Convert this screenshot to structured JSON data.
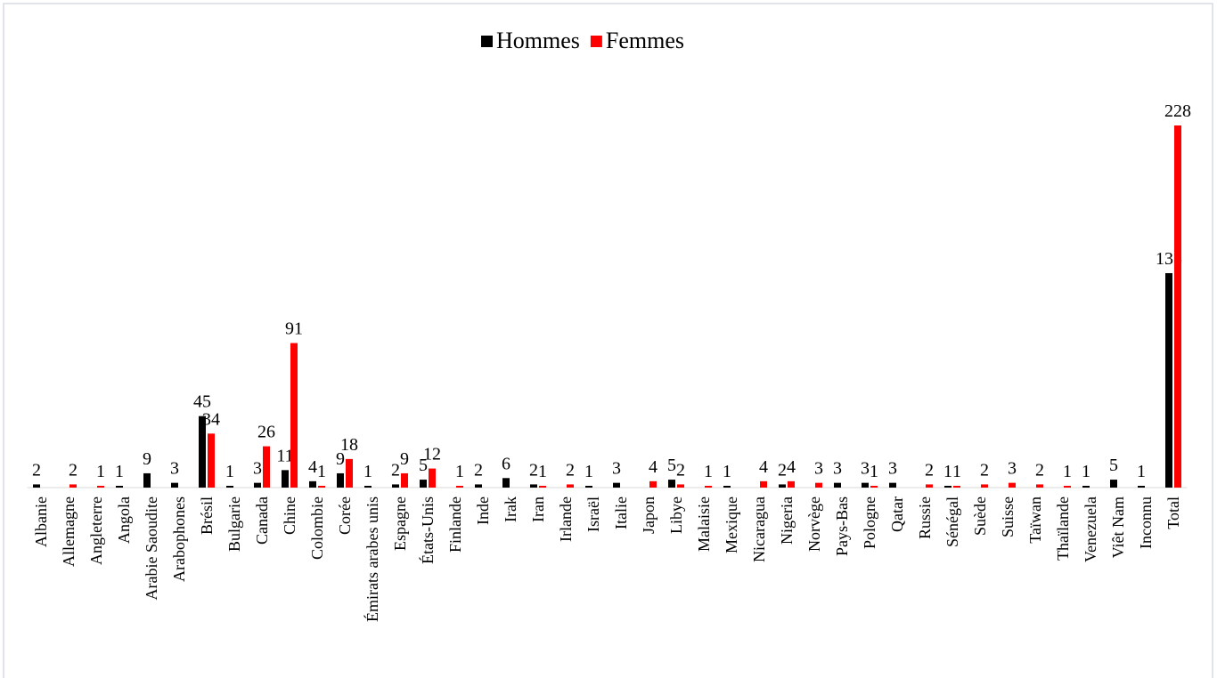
{
  "chart_data": {
    "type": "bar",
    "categories": [
      "Albanie",
      "Allemagne",
      "Angleterre",
      "Angola",
      "Arabie Saoudite",
      "Arabophones",
      "Brésil",
      "Bulgarie",
      "Canada",
      "Chine",
      "Colombie",
      "Corée",
      "Émirats arabes unis",
      "Espagne",
      "États-Unis",
      "Finlande",
      "Inde",
      "Irak",
      "Iran",
      "Irlande",
      "Israël",
      "Italie",
      "Japon",
      "Libye",
      "Malaisie",
      "Mexique",
      "Nicaragua",
      "Nigeria",
      "Norvège",
      "Pays-Bas",
      "Pologne",
      "Qatar",
      "Russie",
      "Sénégal",
      "Suède",
      "Suisse",
      "Taïwan",
      "Thaïlande",
      "Venezuela",
      "Viêt Nam",
      "Inconnu",
      "Total"
    ],
    "series": [
      {
        "name": "Hommes",
        "color": "#000000",
        "values": [
          2,
          null,
          null,
          1,
          9,
          3,
          45,
          1,
          3,
          11,
          4,
          9,
          1,
          2,
          5,
          null,
          2,
          6,
          2,
          null,
          1,
          3,
          null,
          5,
          null,
          1,
          null,
          2,
          null,
          3,
          3,
          3,
          null,
          1,
          null,
          null,
          null,
          null,
          1,
          5,
          1,
          135
        ]
      },
      {
        "name": "Femmes",
        "color": "#ff0000",
        "values": [
          null,
          2,
          1,
          null,
          null,
          null,
          34,
          null,
          26,
          91,
          1,
          18,
          null,
          9,
          12,
          1,
          null,
          null,
          1,
          2,
          null,
          null,
          4,
          2,
          1,
          null,
          4,
          4,
          3,
          null,
          1,
          null,
          2,
          1,
          2,
          3,
          2,
          1,
          null,
          null,
          null,
          228
        ]
      }
    ],
    "legend": "top"
  }
}
